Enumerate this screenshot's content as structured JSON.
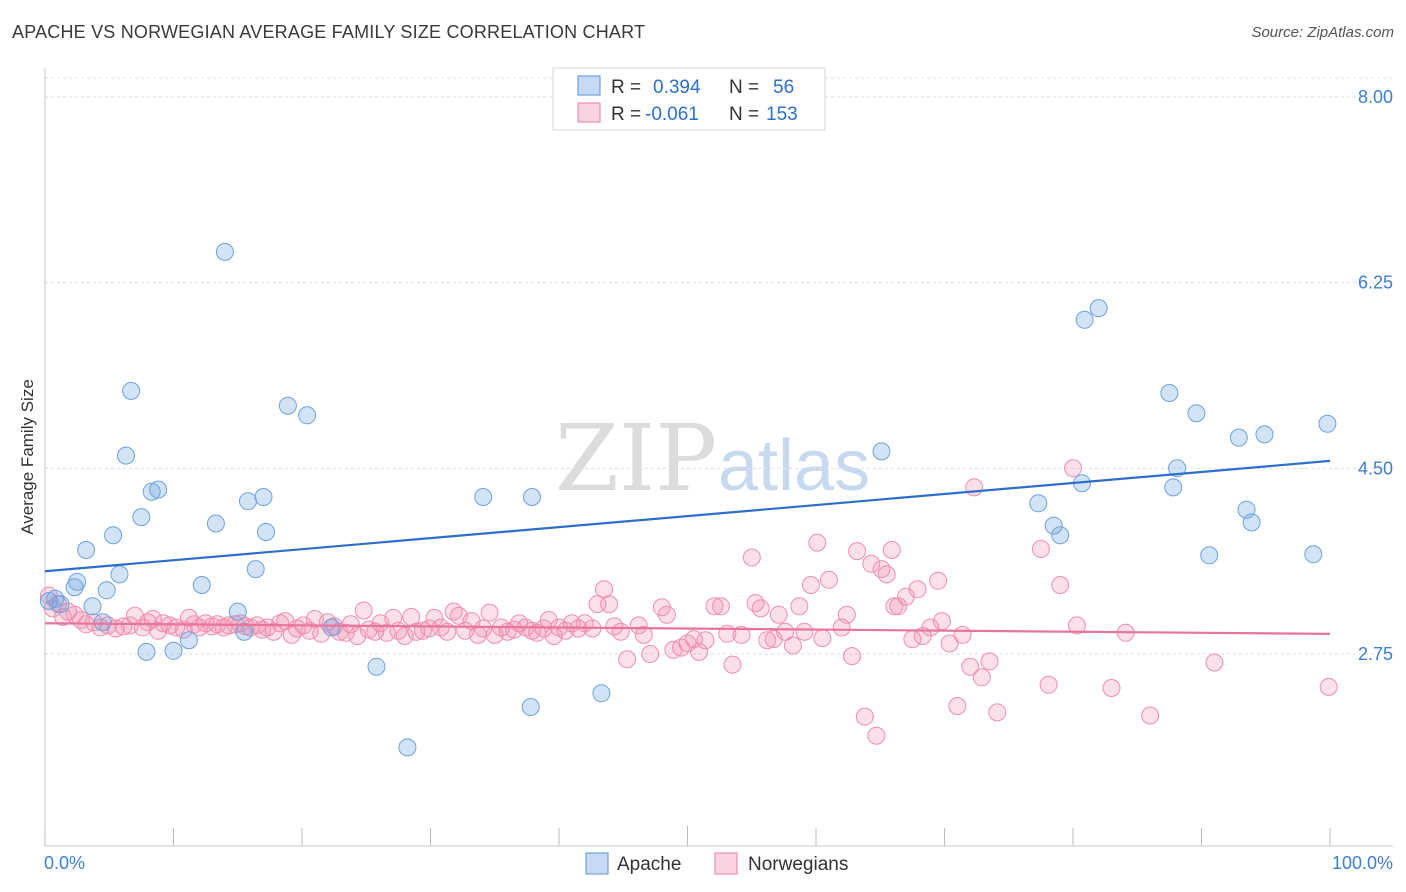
{
  "chart_data": {
    "type": "scatter",
    "title": "APACHE VS NORWEGIAN AVERAGE FAMILY SIZE CORRELATION CHART",
    "source": "Source: ZipAtlas.com",
    "xlabel": "",
    "ylabel": "Average Family Size",
    "xlim": [
      0,
      100
    ],
    "ylim": [
      1.7,
      8.25
    ],
    "x_tick_labels": [
      "0.0%",
      "100.0%"
    ],
    "y_ticks": [
      2.75,
      4.5,
      6.25,
      8.0
    ],
    "y_tick_labels": [
      "2.75",
      "4.50",
      "6.25",
      "8.00"
    ],
    "watermark": {
      "zip": "ZIP",
      "atlas": "atlas"
    },
    "legend": {
      "r_label": "R =",
      "n_label": "N =",
      "entries": [
        {
          "name": "Apache",
          "r": "0.394",
          "n": "56",
          "color": "#6ea2e0"
        },
        {
          "name": "Norwegians",
          "r": "-0.061",
          "n": "153",
          "color": "#f08fae"
        }
      ]
    },
    "series": [
      {
        "name": "Apache",
        "color": "#6ea2e0",
        "trend": {
          "x": [
            0,
            100
          ],
          "y": [
            3.53,
            4.57
          ]
        },
        "points": [
          [
            0.3,
            3.25
          ],
          [
            0.8,
            3.27
          ],
          [
            1.2,
            3.22
          ],
          [
            2.3,
            3.38
          ],
          [
            2.5,
            3.43
          ],
          [
            3.2,
            3.73
          ],
          [
            3.7,
            3.2
          ],
          [
            4.5,
            3.05
          ],
          [
            4.8,
            3.35
          ],
          [
            5.3,
            3.87
          ],
          [
            5.8,
            3.5
          ],
          [
            6.3,
            4.62
          ],
          [
            6.7,
            5.23
          ],
          [
            7.5,
            4.04
          ],
          [
            7.9,
            2.77
          ],
          [
            8.3,
            4.28
          ],
          [
            8.8,
            4.3
          ],
          [
            10.0,
            2.78
          ],
          [
            11.2,
            2.88
          ],
          [
            12.2,
            3.4
          ],
          [
            13.3,
            3.98
          ],
          [
            14.0,
            6.54
          ],
          [
            15.0,
            3.15
          ],
          [
            15.5,
            2.96
          ],
          [
            15.8,
            4.19
          ],
          [
            16.4,
            3.55
          ],
          [
            17.0,
            4.23
          ],
          [
            17.2,
            3.9
          ],
          [
            18.9,
            5.09
          ],
          [
            20.4,
            5.0
          ],
          [
            22.3,
            3.0
          ],
          [
            25.8,
            2.63
          ],
          [
            28.2,
            1.87
          ],
          [
            34.1,
            4.23
          ],
          [
            37.8,
            2.25
          ],
          [
            37.9,
            4.23
          ],
          [
            43.3,
            2.38
          ],
          [
            65.1,
            4.66
          ],
          [
            77.3,
            4.17
          ],
          [
            78.5,
            3.96
          ],
          [
            79.0,
            3.87
          ],
          [
            80.7,
            4.36
          ],
          [
            80.9,
            5.9
          ],
          [
            82.0,
            6.01
          ],
          [
            87.5,
            5.21
          ],
          [
            87.8,
            4.32
          ],
          [
            88.1,
            4.5
          ],
          [
            89.6,
            5.02
          ],
          [
            90.6,
            3.68
          ],
          [
            92.9,
            4.79
          ],
          [
            93.5,
            4.11
          ],
          [
            93.9,
            3.99
          ],
          [
            94.9,
            4.82
          ],
          [
            98.7,
            3.69
          ],
          [
            99.8,
            4.92
          ]
        ]
      },
      {
        "name": "Norwegians",
        "color": "#f08fae",
        "trend": {
          "x": [
            0,
            100
          ],
          "y": [
            3.04,
            2.94
          ]
        },
        "points": [
          [
            0.3,
            3.3
          ],
          [
            0.6,
            3.18
          ],
          [
            1.0,
            3.22
          ],
          [
            1.4,
            3.1
          ],
          [
            1.8,
            3.15
          ],
          [
            2.3,
            3.12
          ],
          [
            2.8,
            3.07
          ],
          [
            3.2,
            3.03
          ],
          [
            3.8,
            3.05
          ],
          [
            4.3,
            3.0
          ],
          [
            4.9,
            3.02
          ],
          [
            5.5,
            2.99
          ],
          [
            6.1,
            3.01
          ],
          [
            6.6,
            3.02
          ],
          [
            7.0,
            3.11
          ],
          [
            7.6,
            3.0
          ],
          [
            8.0,
            3.05
          ],
          [
            8.4,
            3.08
          ],
          [
            8.8,
            2.97
          ],
          [
            9.2,
            3.04
          ],
          [
            9.7,
            3.02
          ],
          [
            10.2,
            3.0
          ],
          [
            10.8,
            2.98
          ],
          [
            11.2,
            3.09
          ],
          [
            11.6,
            3.03
          ],
          [
            12.0,
            3.0
          ],
          [
            12.5,
            3.04
          ],
          [
            13.0,
            3.01
          ],
          [
            13.4,
            3.03
          ],
          [
            13.9,
            3.0
          ],
          [
            14.3,
            3.02
          ],
          [
            14.8,
            3.03
          ],
          [
            15.2,
            3.04
          ],
          [
            15.6,
            3.01
          ],
          [
            16.0,
            3.0
          ],
          [
            16.5,
            3.02
          ],
          [
            16.9,
            2.98
          ],
          [
            17.3,
            3.0
          ],
          [
            17.8,
            2.96
          ],
          [
            18.3,
            3.04
          ],
          [
            18.7,
            3.06
          ],
          [
            19.2,
            2.93
          ],
          [
            19.6,
            2.99
          ],
          [
            20.1,
            3.02
          ],
          [
            20.6,
            2.97
          ],
          [
            21.0,
            3.08
          ],
          [
            21.5,
            2.94
          ],
          [
            22.0,
            3.05
          ],
          [
            22.5,
            3.01
          ],
          [
            22.9,
            2.96
          ],
          [
            23.4,
            2.95
          ],
          [
            23.8,
            3.03
          ],
          [
            24.3,
            2.92
          ],
          [
            24.8,
            3.16
          ],
          [
            25.2,
            2.98
          ],
          [
            25.7,
            2.96
          ],
          [
            26.1,
            3.04
          ],
          [
            26.6,
            2.95
          ],
          [
            27.1,
            3.09
          ],
          [
            27.5,
            2.97
          ],
          [
            28.0,
            2.92
          ],
          [
            28.5,
            3.1
          ],
          [
            28.9,
            2.96
          ],
          [
            29.4,
            2.97
          ],
          [
            29.9,
            2.99
          ],
          [
            30.3,
            3.09
          ],
          [
            30.8,
            3.0
          ],
          [
            31.3,
            2.96
          ],
          [
            31.8,
            3.15
          ],
          [
            32.2,
            3.11
          ],
          [
            32.7,
            2.97
          ],
          [
            33.2,
            3.06
          ],
          [
            33.7,
            2.93
          ],
          [
            34.1,
            2.99
          ],
          [
            34.6,
            3.14
          ],
          [
            35.0,
            2.93
          ],
          [
            35.5,
            3.0
          ],
          [
            36.0,
            2.96
          ],
          [
            36.5,
            2.98
          ],
          [
            36.9,
            3.04
          ],
          [
            37.4,
            3.0
          ],
          [
            37.9,
            2.97
          ],
          [
            38.3,
            2.95
          ],
          [
            38.8,
            2.99
          ],
          [
            39.2,
            3.07
          ],
          [
            39.6,
            2.92
          ],
          [
            40.0,
            3.0
          ],
          [
            40.5,
            2.97
          ],
          [
            41.0,
            3.04
          ],
          [
            41.5,
            2.99
          ],
          [
            42.0,
            3.04
          ],
          [
            42.6,
            2.99
          ],
          [
            43.0,
            3.22
          ],
          [
            43.5,
            3.36
          ],
          [
            43.9,
            3.22
          ],
          [
            44.3,
            3.01
          ],
          [
            44.8,
            2.96
          ],
          [
            45.3,
            2.7
          ],
          [
            46.2,
            3.02
          ],
          [
            46.6,
            2.93
          ],
          [
            47.1,
            2.75
          ],
          [
            48.0,
            3.19
          ],
          [
            48.4,
            3.12
          ],
          [
            48.9,
            2.79
          ],
          [
            49.5,
            2.81
          ],
          [
            50.0,
            2.85
          ],
          [
            50.5,
            2.89
          ],
          [
            50.9,
            2.77
          ],
          [
            51.4,
            2.88
          ],
          [
            52.1,
            3.2
          ],
          [
            52.6,
            3.2
          ],
          [
            53.1,
            2.94
          ],
          [
            53.5,
            2.65
          ],
          [
            54.2,
            2.93
          ],
          [
            55.0,
            3.66
          ],
          [
            55.3,
            3.23
          ],
          [
            55.7,
            3.18
          ],
          [
            56.2,
            2.88
          ],
          [
            56.7,
            2.89
          ],
          [
            57.1,
            3.12
          ],
          [
            57.6,
            2.96
          ],
          [
            58.2,
            2.83
          ],
          [
            58.7,
            3.2
          ],
          [
            59.1,
            2.96
          ],
          [
            59.6,
            3.4
          ],
          [
            60.1,
            3.8
          ],
          [
            60.5,
            2.9
          ],
          [
            61.0,
            3.45
          ],
          [
            62.0,
            3.0
          ],
          [
            62.4,
            3.12
          ],
          [
            62.8,
            2.73
          ],
          [
            63.2,
            3.72
          ],
          [
            63.8,
            2.16
          ],
          [
            64.3,
            3.6
          ],
          [
            64.7,
            1.98
          ],
          [
            65.1,
            3.55
          ],
          [
            65.5,
            3.5
          ],
          [
            65.9,
            3.73
          ],
          [
            66.1,
            3.2
          ],
          [
            66.4,
            3.2
          ],
          [
            67.0,
            3.29
          ],
          [
            67.5,
            2.89
          ],
          [
            67.9,
            3.36
          ],
          [
            68.3,
            2.92
          ],
          [
            68.9,
            3.0
          ],
          [
            69.5,
            3.44
          ],
          [
            69.8,
            3.06
          ],
          [
            70.4,
            2.85
          ],
          [
            71.0,
            2.26
          ],
          [
            71.4,
            2.93
          ],
          [
            72.0,
            2.63
          ],
          [
            72.3,
            4.32
          ],
          [
            72.9,
            2.53
          ],
          [
            73.5,
            2.68
          ],
          [
            74.1,
            2.2
          ],
          [
            77.5,
            3.74
          ],
          [
            78.1,
            2.46
          ],
          [
            79.0,
            3.4
          ],
          [
            80.0,
            4.5
          ],
          [
            80.3,
            3.02
          ],
          [
            83.0,
            2.43
          ],
          [
            84.1,
            2.95
          ],
          [
            86.0,
            2.17
          ],
          [
            91.0,
            2.67
          ],
          [
            99.9,
            2.44
          ]
        ]
      }
    ]
  }
}
